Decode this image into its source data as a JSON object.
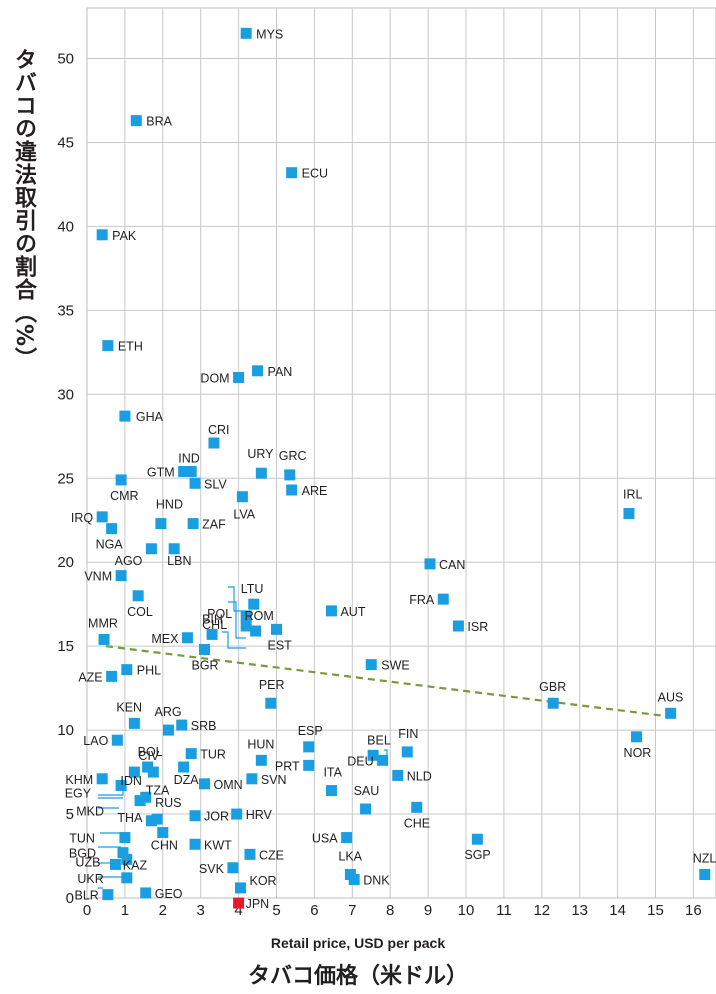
{
  "chart_data": {
    "type": "scatter",
    "title": "",
    "xlabel": "Retail price, USD per pack",
    "xlabel_jp": "タバコ価格（米ドル）",
    "ylabel": "タバコの違法取引の割合（%）",
    "xlim": [
      0,
      16.6
    ],
    "ylim": [
      0,
      53
    ],
    "x_ticks": [
      "0",
      "1",
      "2",
      "3",
      "4",
      "5",
      "6",
      "7",
      "8",
      "9",
      "10",
      "11",
      "12",
      "13",
      "14",
      "15",
      "16"
    ],
    "y_ticks": [
      "0",
      "5",
      "10",
      "15",
      "20",
      "25",
      "30",
      "35",
      "40",
      "45",
      "50"
    ],
    "grid": true,
    "marker_color": "#1a9ee2",
    "highlight_color": "#e8192c",
    "trendline": {
      "style": "dashed",
      "color": "#7a9a3a",
      "x": [
        0.5,
        15.4
      ],
      "y": [
        15.0,
        10.8
      ]
    },
    "points": [
      {
        "label": "MYS",
        "x": 4.2,
        "y": 51.5
      },
      {
        "label": "BRA",
        "x": 1.3,
        "y": 46.3
      },
      {
        "label": "ECU",
        "x": 5.4,
        "y": 43.2
      },
      {
        "label": "PAK",
        "x": 0.4,
        "y": 39.5
      },
      {
        "label": "ETH",
        "x": 0.55,
        "y": 32.9
      },
      {
        "label": "PAN",
        "x": 4.5,
        "y": 31.4
      },
      {
        "label": "DOM",
        "x": 4.0,
        "y": 31.0
      },
      {
        "label": "GHA",
        "x": 1.0,
        "y": 28.7
      },
      {
        "label": "CRI",
        "x": 3.35,
        "y": 27.1
      },
      {
        "label": "IND",
        "x": 2.75,
        "y": 25.4
      },
      {
        "label": "GTM",
        "x": 2.55,
        "y": 25.4
      },
      {
        "label": "URY",
        "x": 4.6,
        "y": 25.3
      },
      {
        "label": "GRC",
        "x": 5.35,
        "y": 25.2
      },
      {
        "label": "CMR",
        "x": 0.9,
        "y": 24.9
      },
      {
        "label": "SLV",
        "x": 2.85,
        "y": 24.7
      },
      {
        "label": "ARE",
        "x": 5.4,
        "y": 24.3
      },
      {
        "label": "LVA",
        "x": 4.1,
        "y": 23.9
      },
      {
        "label": "IRL",
        "x": 14.3,
        "y": 22.9
      },
      {
        "label": "IRQ",
        "x": 0.4,
        "y": 22.7
      },
      {
        "label": "HND",
        "x": 1.95,
        "y": 22.3
      },
      {
        "label": "ZAF",
        "x": 2.8,
        "y": 22.3
      },
      {
        "label": "NGA",
        "x": 0.65,
        "y": 22.0
      },
      {
        "label": "AGO",
        "x": 1.7,
        "y": 20.8
      },
      {
        "label": "LBN",
        "x": 2.3,
        "y": 20.8
      },
      {
        "label": "CAN",
        "x": 9.05,
        "y": 19.9
      },
      {
        "label": "VNM",
        "x": 0.9,
        "y": 19.2
      },
      {
        "label": "POL",
        "x": 4.2,
        "y": 16.8
      },
      {
        "label": "COL",
        "x": 1.35,
        "y": 18.0
      },
      {
        "label": "FRA",
        "x": 9.4,
        "y": 17.8
      },
      {
        "label": "LTU",
        "x": 4.4,
        "y": 17.5
      },
      {
        "label": "CHL",
        "x": 4.2,
        "y": 16.2
      },
      {
        "label": "AUT",
        "x": 6.45,
        "y": 17.1
      },
      {
        "label": "ISR",
        "x": 9.8,
        "y": 16.2
      },
      {
        "label": "ROM",
        "x": 4.45,
        "y": 15.9
      },
      {
        "label": "BIH",
        "x": 3.3,
        "y": 15.7
      },
      {
        "label": "EST",
        "x": 5.0,
        "y": 16.0
      },
      {
        "label": "MEX",
        "x": 2.65,
        "y": 15.5
      },
      {
        "label": "MMR",
        "x": 0.45,
        "y": 15.4
      },
      {
        "label": "BGR",
        "x": 3.1,
        "y": 14.8
      },
      {
        "label": "SWE",
        "x": 7.5,
        "y": 13.9
      },
      {
        "label": "PHL",
        "x": 1.05,
        "y": 13.6
      },
      {
        "label": "AZE",
        "x": 0.65,
        "y": 13.2
      },
      {
        "label": "GBR",
        "x": 12.3,
        "y": 11.6
      },
      {
        "label": "PER",
        "x": 4.85,
        "y": 11.6
      },
      {
        "label": "AUS",
        "x": 15.4,
        "y": 11.0
      },
      {
        "label": "KEN",
        "x": 1.25,
        "y": 10.4
      },
      {
        "label": "SRB",
        "x": 2.5,
        "y": 10.3
      },
      {
        "label": "ARG",
        "x": 2.15,
        "y": 10.0
      },
      {
        "label": "NOR",
        "x": 14.5,
        "y": 9.6
      },
      {
        "label": "LAO",
        "x": 0.8,
        "y": 9.4
      },
      {
        "label": "ESP",
        "x": 5.85,
        "y": 9.0
      },
      {
        "label": "TUR",
        "x": 2.75,
        "y": 8.6
      },
      {
        "label": "BEL",
        "x": 7.55,
        "y": 8.5
      },
      {
        "label": "FIN",
        "x": 8.45,
        "y": 8.7
      },
      {
        "label": "DEU",
        "x": 7.8,
        "y": 8.2
      },
      {
        "label": "HUN",
        "x": 4.6,
        "y": 8.2
      },
      {
        "label": "PRT",
        "x": 5.85,
        "y": 7.9
      },
      {
        "label": "BOL",
        "x": 1.6,
        "y": 7.8
      },
      {
        "label": "DZA",
        "x": 2.55,
        "y": 7.8
      },
      {
        "label": "CIV",
        "x": 1.75,
        "y": 7.5
      },
      {
        "label": "NLD",
        "x": 8.2,
        "y": 7.3
      },
      {
        "label": "ITA",
        "x": 6.45,
        "y": 6.4
      },
      {
        "label": "SVN",
        "x": 4.35,
        "y": 7.1
      },
      {
        "label": "OMN",
        "x": 3.1,
        "y": 6.8
      },
      {
        "label": "KHM",
        "x": 0.4,
        "y": 7.1
      },
      {
        "label": "EGY",
        "x": 0.9,
        "y": 6.7
      },
      {
        "label": "IDN",
        "x": 1.25,
        "y": 7.5
      },
      {
        "label": "TZA",
        "x": 1.55,
        "y": 6.0
      },
      {
        "label": "MKD",
        "x": 1.4,
        "y": 5.8
      },
      {
        "label": "CHE",
        "x": 8.7,
        "y": 5.4
      },
      {
        "label": "SAU",
        "x": 7.35,
        "y": 5.3
      },
      {
        "label": "RUS",
        "x": 1.85,
        "y": 4.7
      },
      {
        "label": "THA",
        "x": 1.7,
        "y": 4.6
      },
      {
        "label": "JOR",
        "x": 2.85,
        "y": 4.9
      },
      {
        "label": "HRV",
        "x": 3.95,
        "y": 5.0
      },
      {
        "label": "CHN",
        "x": 2.0,
        "y": 3.9
      },
      {
        "label": "TUN",
        "x": 1.0,
        "y": 3.6
      },
      {
        "label": "USA",
        "x": 6.85,
        "y": 3.6
      },
      {
        "label": "SGP",
        "x": 10.3,
        "y": 3.5
      },
      {
        "label": "KWT",
        "x": 2.85,
        "y": 3.2
      },
      {
        "label": "BGD",
        "x": 0.95,
        "y": 2.7
      },
      {
        "label": "CZE",
        "x": 4.3,
        "y": 2.6
      },
      {
        "label": "KAZ",
        "x": 1.05,
        "y": 2.3
      },
      {
        "label": "UZB",
        "x": 0.75,
        "y": 2.0
      },
      {
        "label": "SVK",
        "x": 3.85,
        "y": 1.8
      },
      {
        "label": "NZL",
        "x": 16.3,
        "y": 1.4
      },
      {
        "label": "LKA",
        "x": 6.95,
        "y": 1.4
      },
      {
        "label": "DNK",
        "x": 7.05,
        "y": 1.1
      },
      {
        "label": "UKR",
        "x": 1.05,
        "y": 1.2
      },
      {
        "label": "KOR",
        "x": 4.05,
        "y": 0.6
      },
      {
        "label": "BLR",
        "x": 0.55,
        "y": 0.2
      },
      {
        "label": "GEO",
        "x": 1.55,
        "y": 0.3
      },
      {
        "label": "JPN",
        "x": 4.0,
        "y": -0.3,
        "highlight": true
      }
    ]
  }
}
